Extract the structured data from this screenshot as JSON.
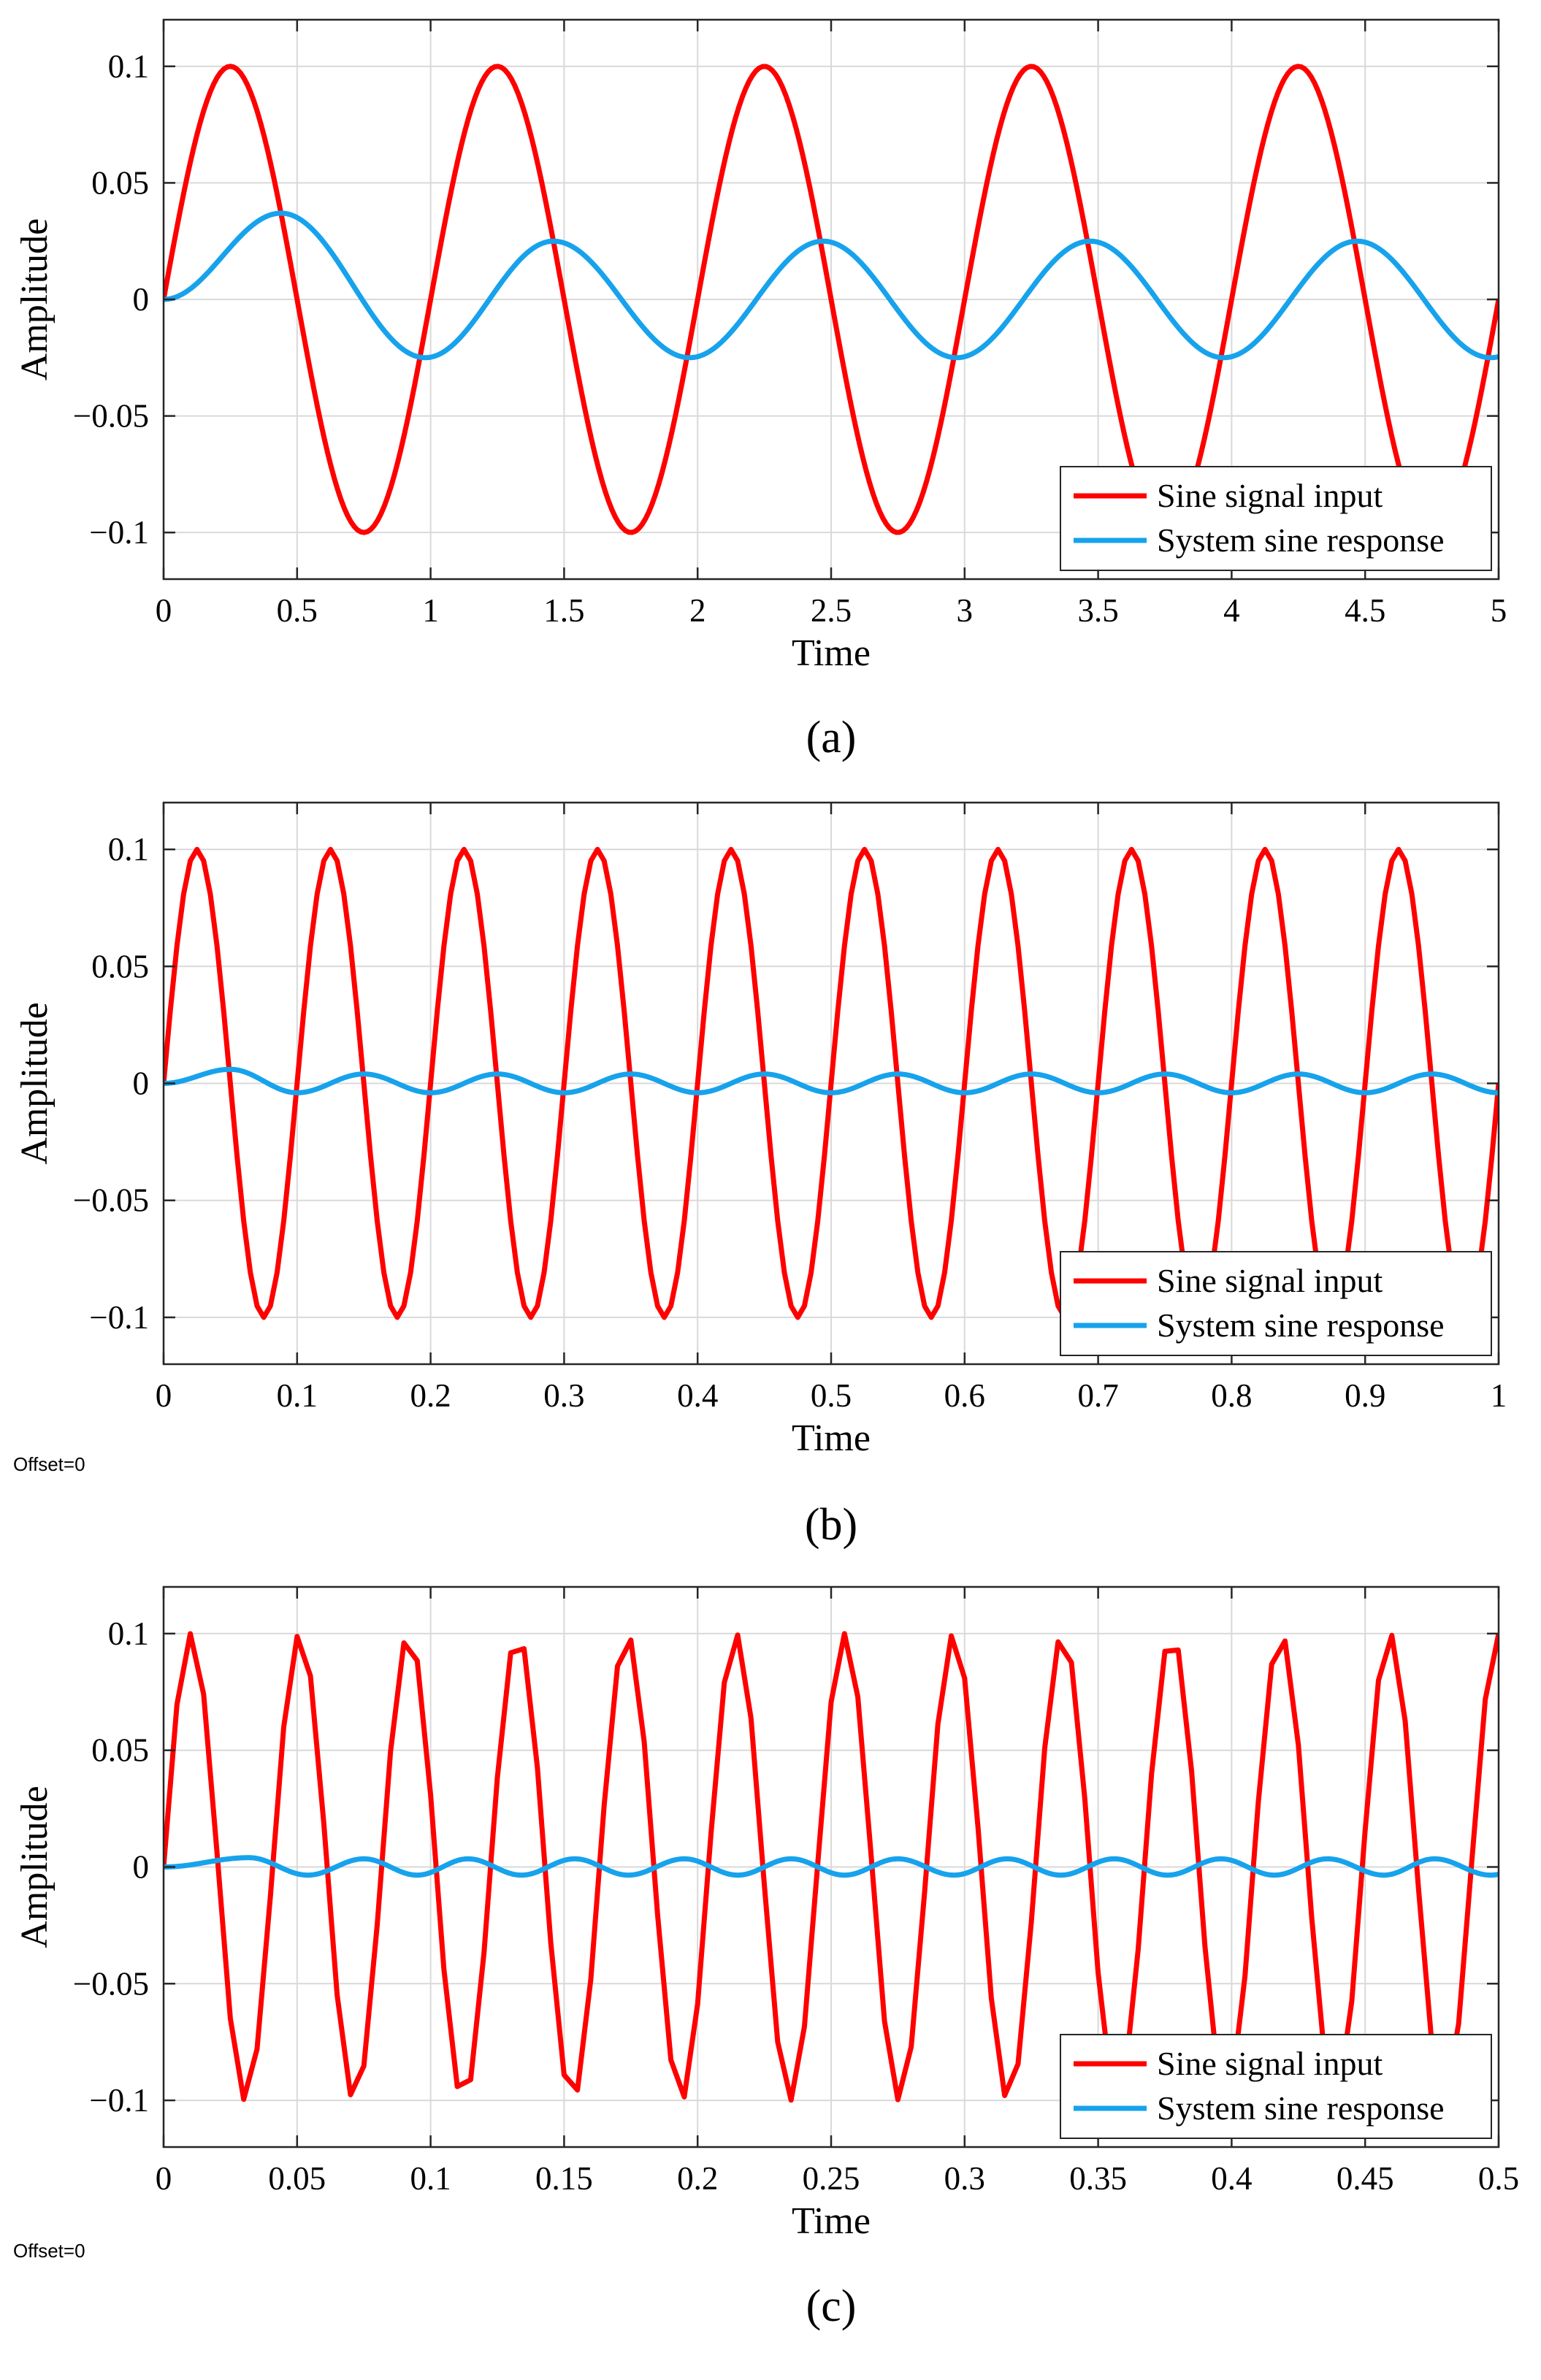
{
  "legend": {
    "input_label": "Sine signal input",
    "response_label": "System sine response"
  },
  "colors": {
    "input": "#ff0000",
    "response": "#17a2ec",
    "grid": "#d9d9d9",
    "axis": "#262626"
  },
  "chart_data": [
    {
      "type": "line",
      "panel_label": "(a)",
      "xlabel": "Time",
      "ylabel": "Amplitude",
      "xlim": [
        0,
        5
      ],
      "ylim": [
        -0.12,
        0.12
      ],
      "xticks": [
        0,
        0.5,
        1,
        1.5,
        2,
        2.5,
        3,
        3.5,
        4,
        4.5,
        5
      ],
      "xtick_labels": [
        "0",
        "0.5",
        "1",
        "1.5",
        "2",
        "2.5",
        "3",
        "3.5",
        "4",
        "4.5",
        "5"
      ],
      "yticks": [
        -0.1,
        -0.05,
        0,
        0.05,
        0.1
      ],
      "ytick_labels": [
        "−0.1",
        "−0.05",
        "0",
        "0.05",
        "0.1"
      ],
      "grid": true,
      "legend_position": "bottom-right",
      "offset_text": "",
      "series": [
        {
          "name": "Sine signal input",
          "color": "#ff0000",
          "amplitude": 0.1,
          "frequency_hz": 1,
          "samples": 400
        },
        {
          "name": "System sine response",
          "color": "#17a2ec",
          "steady_amplitude": 0.025,
          "first_peak": 0.037,
          "first_peak_time": 0.44,
          "peak_times": [
            0.44,
            1.46,
            2.47,
            3.47,
            4.47
          ],
          "trough_times": [
            0.98,
            1.97,
            2.97,
            3.97,
            4.97
          ],
          "samples": 400
        }
      ]
    },
    {
      "type": "line",
      "panel_label": "(b)",
      "xlabel": "Time",
      "ylabel": "Amplitude",
      "xlim": [
        0,
        1
      ],
      "ylim": [
        -0.12,
        0.12
      ],
      "xticks": [
        0,
        0.1,
        0.2,
        0.3,
        0.4,
        0.5,
        0.6,
        0.7,
        0.8,
        0.9,
        1
      ],
      "xtick_labels": [
        "0",
        "0.1",
        "0.2",
        "0.3",
        "0.4",
        "0.5",
        "0.6",
        "0.7",
        "0.8",
        "0.9",
        "1"
      ],
      "yticks": [
        -0.1,
        -0.05,
        0,
        0.05,
        0.1
      ],
      "ytick_labels": [
        "−0.1",
        "−0.05",
        "0",
        "0.05",
        "0.1"
      ],
      "grid": true,
      "legend_position": "bottom-right",
      "offset_text": "Offset=0",
      "series": [
        {
          "name": "Sine signal input",
          "color": "#ff0000",
          "amplitude": 0.1,
          "frequency_hz": 10,
          "samples": 201
        },
        {
          "name": "System sine response",
          "color": "#17a2ec",
          "steady_amplitude": 0.004,
          "first_peak": 0.006,
          "first_peak_time": 0.05,
          "peak_times": [
            0.05,
            0.15,
            0.25,
            0.35,
            0.45,
            0.55,
            0.65,
            0.75,
            0.85,
            0.95
          ],
          "trough_times": [
            0.1,
            0.2,
            0.3,
            0.4,
            0.5,
            0.6,
            0.7,
            0.8,
            0.9,
            1.0
          ],
          "samples": 201
        }
      ]
    },
    {
      "type": "line",
      "panel_label": "(c)",
      "xlabel": "Time",
      "ylabel": "Amplitude",
      "xlim": [
        0,
        0.5
      ],
      "ylim": [
        -0.12,
        0.12
      ],
      "xticks": [
        0,
        0.05,
        0.1,
        0.15,
        0.2,
        0.25,
        0.3,
        0.35,
        0.4,
        0.45,
        0.5
      ],
      "xtick_labels": [
        "0",
        "0.05",
        "0.1",
        "0.15",
        "0.2",
        "0.25",
        "0.3",
        "0.35",
        "0.4",
        "0.45",
        "0.5"
      ],
      "yticks": [
        -0.1,
        -0.05,
        0,
        0.05,
        0.1
      ],
      "ytick_labels": [
        "−0.1",
        "−0.05",
        "0",
        "0.05",
        "0.1"
      ],
      "grid": true,
      "legend_position": "bottom-right",
      "offset_text": "Offset=0",
      "series": [
        {
          "name": "Sine signal input",
          "color": "#ff0000",
          "amplitude": 0.1,
          "frequency_hz": 24.5,
          "samples": 101
        },
        {
          "name": "System sine response",
          "color": "#17a2ec",
          "steady_amplitude": 0.0035,
          "first_peak": 0.004,
          "first_peak_time": 0.032,
          "peak_times": [
            0.032,
            0.075,
            0.114,
            0.154,
            0.195,
            0.235,
            0.275,
            0.316,
            0.356,
            0.396,
            0.436,
            0.476
          ],
          "trough_times": [
            0.054,
            0.095,
            0.134,
            0.174,
            0.215,
            0.255,
            0.296,
            0.336,
            0.376,
            0.416,
            0.457,
            0.497
          ],
          "samples": 101
        }
      ]
    }
  ]
}
